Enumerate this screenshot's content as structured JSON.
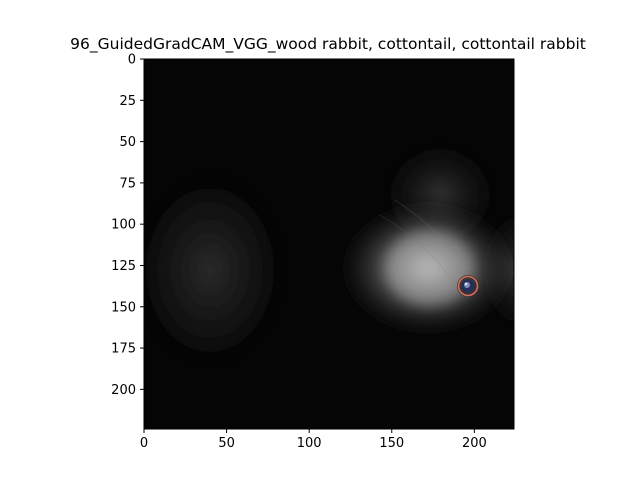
{
  "figure": {
    "title": "96_GuidedGradCAM_VGG_wood rabbit, cottontail, cottontail rabbit"
  },
  "image": {
    "description_colors": {
      "background": "#050505",
      "highlight": "#bdbdbd",
      "eye_ring": "#d07060",
      "eye_center": "#24305a"
    }
  },
  "axes": {
    "x": {
      "range": [
        0,
        224
      ],
      "ticks": [
        {
          "value": 0,
          "label": "0"
        },
        {
          "value": 50,
          "label": "50"
        },
        {
          "value": 100,
          "label": "100"
        },
        {
          "value": 150,
          "label": "150"
        },
        {
          "value": 200,
          "label": "200"
        }
      ]
    },
    "y": {
      "range": [
        0,
        224
      ],
      "inverted": true,
      "ticks": [
        {
          "value": 0,
          "label": "0"
        },
        {
          "value": 25,
          "label": "25"
        },
        {
          "value": 50,
          "label": "50"
        },
        {
          "value": 75,
          "label": "75"
        },
        {
          "value": 100,
          "label": "100"
        },
        {
          "value": 125,
          "label": "125"
        },
        {
          "value": 150,
          "label": "150"
        },
        {
          "value": 175,
          "label": "175"
        },
        {
          "value": 200,
          "label": "200"
        }
      ]
    }
  }
}
